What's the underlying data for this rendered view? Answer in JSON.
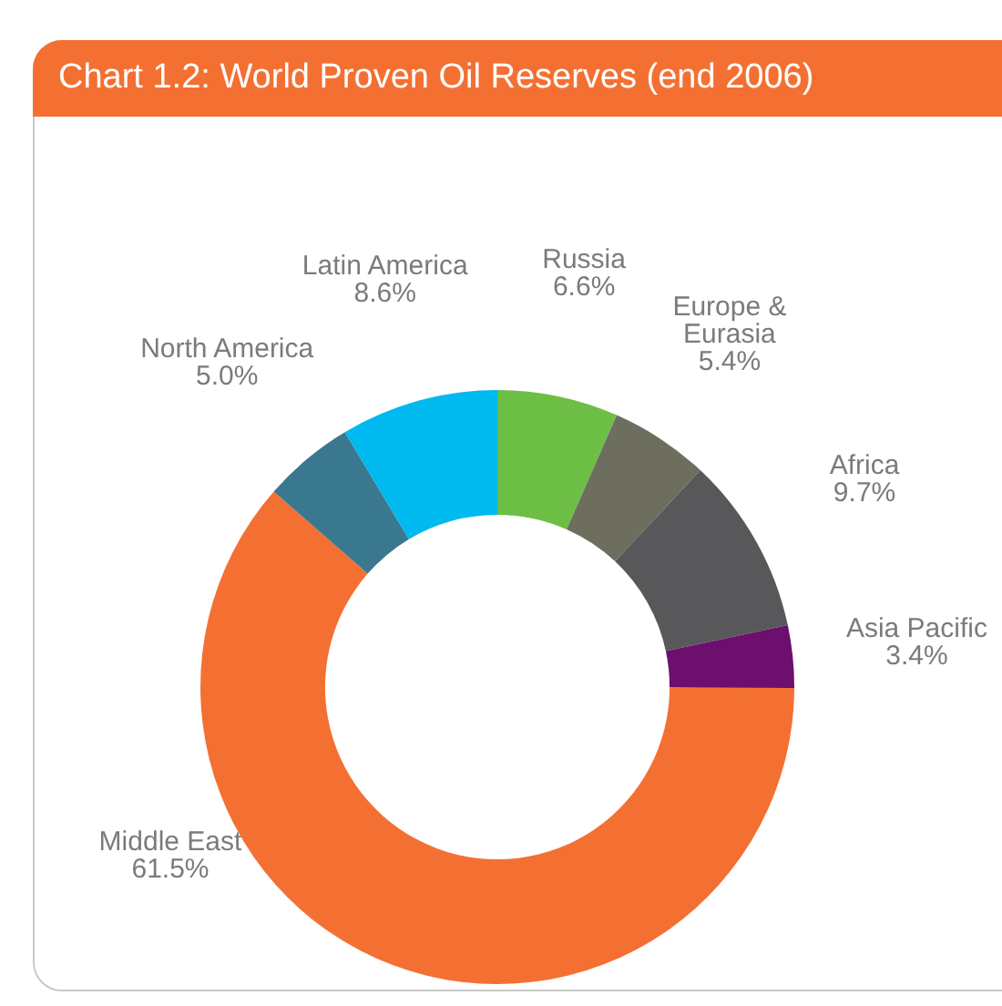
{
  "chart_data": {
    "type": "donut",
    "title": "Chart 1.2: World Proven Oil Reserves (end 2006)",
    "categories": [
      "Russia",
      "Europe & Eurasia",
      "Africa",
      "Asia Pacific",
      "Middle East",
      "North America",
      "Latin America"
    ],
    "values": [
      6.6,
      5.4,
      9.7,
      3.4,
      61.5,
      5.0,
      8.6
    ],
    "value_labels": [
      "6.6%",
      "5.4%",
      "9.7%",
      "3.4%",
      "61.5%",
      "5.0%",
      "8.6%"
    ],
    "colors": [
      "#6dbe45",
      "#6e6e5e",
      "#58585a",
      "#6d0f6d",
      "#f47032",
      "#3a7890",
      "#00b9ef"
    ],
    "legend": false
  }
}
